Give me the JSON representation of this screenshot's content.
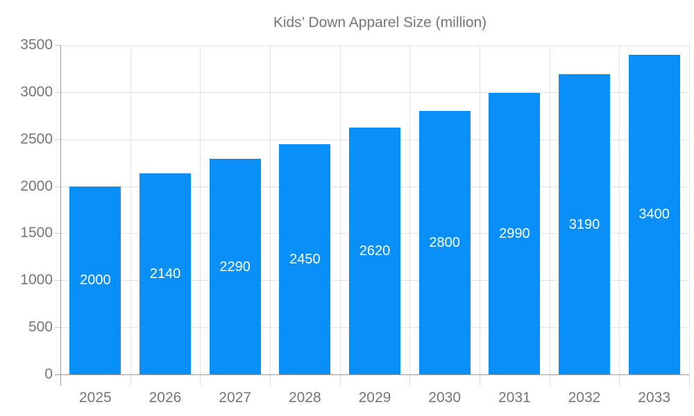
{
  "legend": {
    "label": "Kids’ Down Apparel Size (million)"
  },
  "chart_data": {
    "type": "bar",
    "title": "",
    "categories": [
      "2025",
      "2026",
      "2027",
      "2028",
      "2029",
      "2030",
      "2031",
      "2032",
      "2033"
    ],
    "series": [
      {
        "name": "Kids’ Down Apparel Size (million)",
        "values": [
          2000,
          2140,
          2290,
          2450,
          2620,
          2800,
          2990,
          3190,
          3400
        ]
      }
    ],
    "xlabel": "",
    "ylabel": "",
    "ylim": [
      0,
      3500
    ],
    "ytick_interval": 500,
    "ytick_labels": [
      "0",
      "500",
      "1000",
      "1500",
      "2000",
      "2500",
      "3000",
      "3500"
    ],
    "grid": true,
    "legend_position": "top-center",
    "bar_label_position": "inside-center",
    "colors": {
      "bar": "#0890F8",
      "grid_line": "#E3E3E3",
      "axis_line": "#999999",
      "y_tick": "#CCCCCC",
      "category_tick": "#D9D9D9",
      "axis_text": "#757575",
      "bar_label_text": "#FFFFFF",
      "background": "#FFFFFF"
    }
  }
}
